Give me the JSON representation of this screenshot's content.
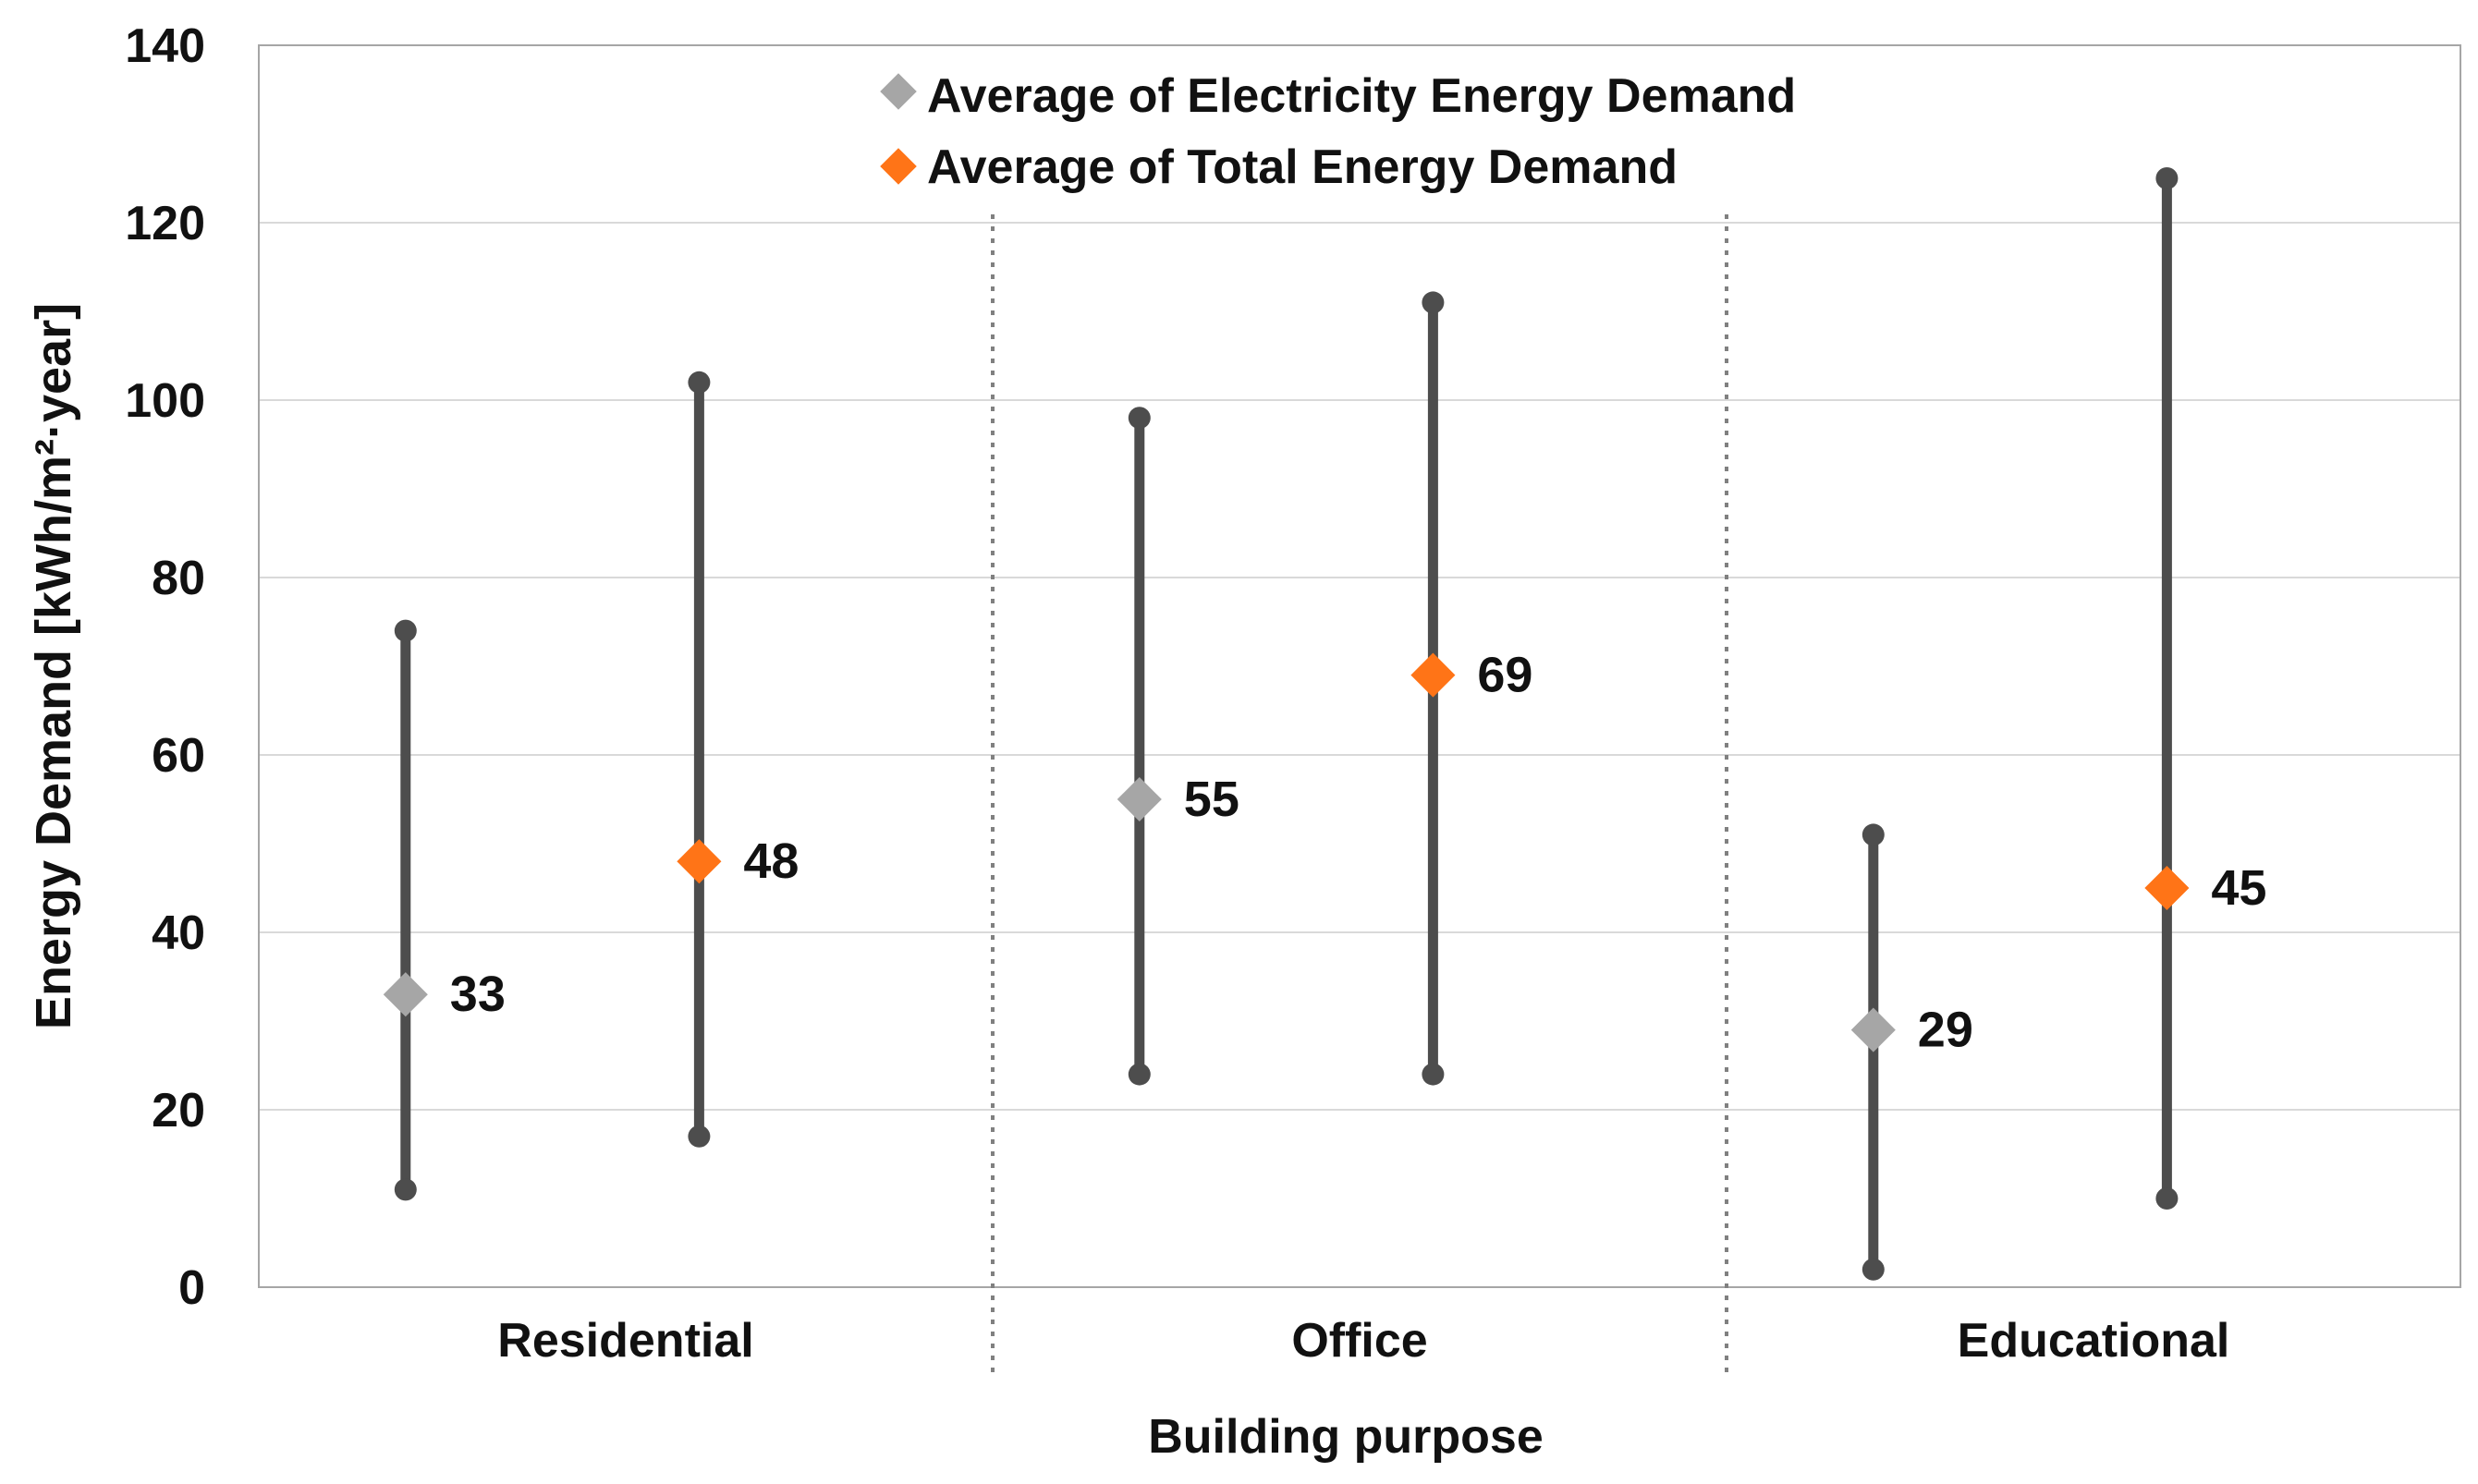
{
  "chart_data": {
    "type": "range",
    "title": "",
    "xlabel": "Building purpose",
    "ylabel": "Energy Demand [kWh/m²·year]",
    "ylim": [
      0,
      140
    ],
    "yticks": [
      0,
      20,
      40,
      60,
      80,
      100,
      120,
      140
    ],
    "grid": true,
    "legend_position": "top-center",
    "categories": [
      "Residential",
      "Office",
      "Educational"
    ],
    "series": [
      {
        "name": "Average of Electricity Energy Demand",
        "color": "#a6a6a6",
        "averages": [
          33,
          55,
          29
        ],
        "mins": [
          11,
          24,
          2
        ],
        "maxs": [
          74,
          98,
          51
        ],
        "avg_labels": [
          "33",
          "55",
          "29"
        ]
      },
      {
        "name": "Average of Total Energy Demand",
        "color": "#ff7417",
        "averages": [
          48,
          69,
          45
        ],
        "mins": [
          17,
          24,
          10
        ],
        "maxs": [
          102,
          111,
          125
        ],
        "avg_labels": [
          "48",
          "69",
          "45"
        ]
      }
    ],
    "range_line_color": "#4d4d4d"
  }
}
